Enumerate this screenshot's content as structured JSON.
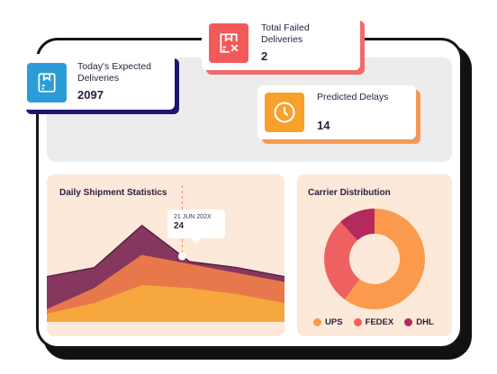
{
  "cards": {
    "expected": {
      "label": "Today's Expected Deliveries",
      "value": "2097",
      "icon": "package-icon",
      "color": "#2a9cd8"
    },
    "failed": {
      "label": "Total Failed Deliveries",
      "value": "2",
      "icon": "package-x-icon",
      "color": "#f25a5a"
    },
    "delays": {
      "label": "Predicted Delays",
      "value": "14",
      "icon": "clock-icon",
      "color": "#f7a12b"
    }
  },
  "daily_stats": {
    "title": "Daily Shipment Statistics",
    "tooltip": {
      "date": "21 JUN 202X",
      "value": "24"
    }
  },
  "carrier": {
    "title": "Carrier Distribution",
    "legend": [
      {
        "name": "UPS",
        "color": "#fb9a4c"
      },
      {
        "name": "FEDEX",
        "color": "#ef6160"
      },
      {
        "name": "DHL",
        "color": "#b52a5c"
      }
    ]
  },
  "chart_data": [
    {
      "type": "area",
      "title": "Daily Shipment Statistics",
      "x": [
        0,
        1,
        2,
        3,
        4,
        5
      ],
      "series": [
        {
          "values": [
            30,
            36,
            64,
            40,
            36,
            30
          ],
          "color": "#86375e"
        },
        {
          "values": [
            8,
            22,
            44,
            38,
            32,
            26
          ],
          "color": "#e7784c"
        },
        {
          "values": [
            5,
            12,
            24,
            22,
            18,
            12
          ],
          "color": "#f6a73e"
        }
      ],
      "ylim": [
        0,
        80
      ],
      "annotations": [
        {
          "x": 3,
          "label": "21 JUN 202X",
          "value": "24"
        }
      ]
    },
    {
      "type": "pie",
      "title": "Carrier Distribution",
      "categories": [
        "UPS",
        "FEDEX",
        "DHL"
      ],
      "values": [
        60,
        28,
        12
      ],
      "colors": [
        "#fb9a4c",
        "#ef6160",
        "#b52a5c"
      ]
    }
  ]
}
